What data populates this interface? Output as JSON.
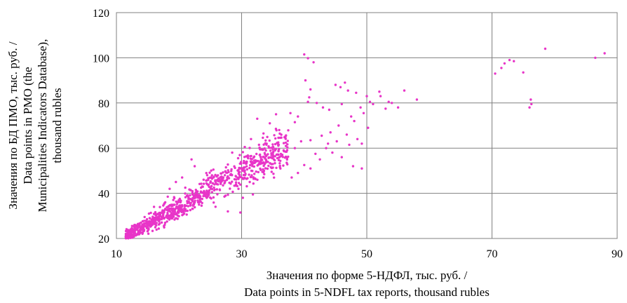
{
  "chart_data": {
    "type": "scatter",
    "title": "",
    "xlabel": [
      "Значения по форме 5-НДФЛ, тыс. руб. /",
      "Data points in 5-NDFL tax reports, thousand rubles"
    ],
    "ylabel": [
      "Значения по БД ПМО, тыс. руб. /",
      "Data points in PMO (the",
      "Municipalities Indicators Database),",
      "thousand rubles"
    ],
    "xlim": [
      10,
      90
    ],
    "ylim": [
      20,
      120
    ],
    "xticks": [
      10,
      30,
      50,
      70,
      90
    ],
    "yticks": [
      20,
      40,
      60,
      80,
      100,
      120
    ],
    "grid": true,
    "legend": "none",
    "marker_color": "#e835c8",
    "series": [
      {
        "values_xy": [
          [
            40.0,
            101.5
          ],
          [
            40.6,
            99.8
          ],
          [
            41.5,
            98.0
          ],
          [
            40.2,
            90.0
          ],
          [
            41.0,
            86.0
          ],
          [
            40.8,
            82.5
          ],
          [
            40.6,
            80.5
          ],
          [
            46.5,
            89.0
          ],
          [
            45.0,
            88.0
          ],
          [
            45.8,
            87.0
          ],
          [
            47.0,
            85.5
          ],
          [
            48.3,
            84.5
          ],
          [
            49.0,
            78.0
          ],
          [
            49.5,
            75.5
          ],
          [
            50.0,
            83.0
          ],
          [
            50.5,
            80.5
          ],
          [
            51.0,
            79.5
          ],
          [
            52.0,
            85.0
          ],
          [
            52.2,
            83.0
          ],
          [
            53.5,
            80.5
          ],
          [
            54.0,
            80.0
          ],
          [
            56.0,
            85.5
          ],
          [
            58.0,
            81.5
          ],
          [
            55.0,
            78.0
          ],
          [
            53.0,
            77.5
          ],
          [
            70.5,
            93.0
          ],
          [
            71.5,
            95.5
          ],
          [
            72.0,
            97.5
          ],
          [
            72.8,
            99.0
          ],
          [
            73.5,
            98.5
          ],
          [
            75.0,
            93.5
          ],
          [
            76.0,
            78.0
          ],
          [
            76.3,
            79.5
          ],
          [
            76.2,
            81.5
          ],
          [
            78.5,
            104.0
          ],
          [
            86.5,
            100.0
          ],
          [
            88.0,
            102.0
          ],
          [
            42.0,
            80.0
          ],
          [
            43.0,
            78.0
          ],
          [
            44.0,
            77.0
          ],
          [
            46.0,
            79.5
          ],
          [
            47.5,
            74.0
          ],
          [
            48.0,
            72.0
          ],
          [
            45.5,
            70.0
          ],
          [
            46.8,
            66.0
          ],
          [
            48.5,
            64.0
          ],
          [
            49.2,
            62.0
          ],
          [
            50.2,
            69.0
          ],
          [
            47.2,
            61.5
          ],
          [
            46.0,
            56.0
          ],
          [
            47.8,
            52.0
          ],
          [
            49.2,
            51.0
          ],
          [
            43.5,
            60.0
          ],
          [
            44.5,
            58.0
          ],
          [
            42.5,
            55.0
          ],
          [
            41.0,
            63.5
          ],
          [
            42.8,
            65.5
          ],
          [
            44.2,
            67.0
          ],
          [
            45.2,
            63.0
          ],
          [
            43.8,
            62.0
          ],
          [
            41.8,
            57.5
          ],
          [
            39.5,
            63.0
          ],
          [
            38.5,
            60.0
          ],
          [
            37.0,
            65.0
          ],
          [
            36.0,
            68.0
          ],
          [
            35.5,
            75.0
          ],
          [
            34.5,
            71.0
          ],
          [
            33.5,
            66.5
          ],
          [
            32.5,
            73.0
          ],
          [
            31.5,
            64.0
          ],
          [
            34.0,
            62.0
          ],
          [
            35.0,
            56.0
          ],
          [
            37.2,
            53.5
          ],
          [
            36.5,
            57.0
          ],
          [
            38.5,
            71.5
          ],
          [
            39.0,
            74.0
          ],
          [
            37.8,
            75.5
          ],
          [
            30.5,
            60.5
          ],
          [
            28.5,
            58.0
          ],
          [
            31.0,
            56.0
          ],
          [
            32.0,
            54.5
          ],
          [
            33.0,
            53.0
          ],
          [
            29.5,
            42.0
          ],
          [
            30.2,
            38.0
          ],
          [
            27.8,
            32.0
          ],
          [
            29.8,
            31.5
          ],
          [
            31.3,
            45.0
          ],
          [
            33.5,
            47.0
          ],
          [
            34.8,
            49.5
          ],
          [
            36.2,
            51.0
          ],
          [
            38.0,
            47.0
          ],
          [
            39.0,
            49.0
          ],
          [
            40.0,
            52.5
          ],
          [
            41.0,
            51.0
          ],
          [
            31.8,
            39.5
          ],
          [
            24.0,
            41.0
          ],
          [
            22.0,
            55.0
          ],
          [
            22.5,
            52.0
          ],
          [
            24.5,
            48.0
          ],
          [
            25.5,
            50.5
          ],
          [
            26.5,
            46.0
          ],
          [
            27.5,
            51.5
          ],
          [
            28.3,
            48.5
          ],
          [
            20.5,
            47.0
          ],
          [
            19.5,
            45.0
          ],
          [
            18.5,
            42.0
          ],
          [
            21.0,
            42.5
          ],
          [
            11.5,
            22.0
          ],
          [
            12.2,
            20.5
          ],
          [
            12.8,
            20.8
          ],
          [
            13.5,
            22.5
          ],
          [
            14.2,
            24.0
          ],
          [
            15.0,
            25.5
          ],
          [
            15.8,
            27.5
          ],
          [
            16.5,
            29.0
          ],
          [
            17.2,
            31.5
          ],
          [
            16.0,
            34.0
          ],
          [
            15.2,
            31.0
          ],
          [
            14.5,
            29.5
          ],
          [
            17.8,
            36.0
          ],
          [
            18.2,
            38.5
          ]
        ]
      }
    ]
  }
}
